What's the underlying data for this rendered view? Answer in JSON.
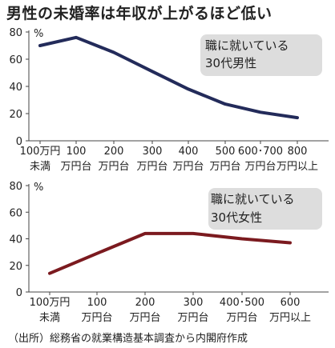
{
  "title": "男性の未婚率は年収が上がるほど低い",
  "source": "（出所）総務省の就業構造基本調査から内閣府作成",
  "chart_data": [
    {
      "type": "line",
      "unit": "%",
      "legend": [
        "職に就いている",
        "30代男性"
      ],
      "color": "#232b5a",
      "ylim": [
        0,
        80
      ],
      "yticks": [
        0,
        20,
        40,
        60,
        80
      ],
      "categories": [
        [
          "100万円",
          "未満"
        ],
        [
          "100",
          "万円台"
        ],
        [
          "200",
          "万円台"
        ],
        [
          "300",
          "万円台"
        ],
        [
          "400",
          "万円台"
        ],
        [
          "500",
          "万円台"
        ],
        [
          "600･700",
          "万円台"
        ],
        [
          "800",
          "万円以上"
        ]
      ],
      "values": [
        70,
        76,
        65,
        51,
        38,
        27,
        21,
        17
      ]
    },
    {
      "type": "line",
      "unit": "%",
      "legend": [
        "職に就いている",
        "30代女性"
      ],
      "color": "#7b1a1f",
      "ylim": [
        0,
        80
      ],
      "yticks": [
        0,
        20,
        40,
        60,
        80
      ],
      "categories": [
        [
          "100万円",
          "未満"
        ],
        [
          "100",
          "万円台"
        ],
        [
          "200",
          "万円台"
        ],
        [
          "300",
          "万円台"
        ],
        [
          "400･500",
          "万円台"
        ],
        [
          "600",
          "万円以上"
        ]
      ],
      "values": [
        14,
        29,
        44,
        44,
        40,
        37
      ]
    }
  ]
}
